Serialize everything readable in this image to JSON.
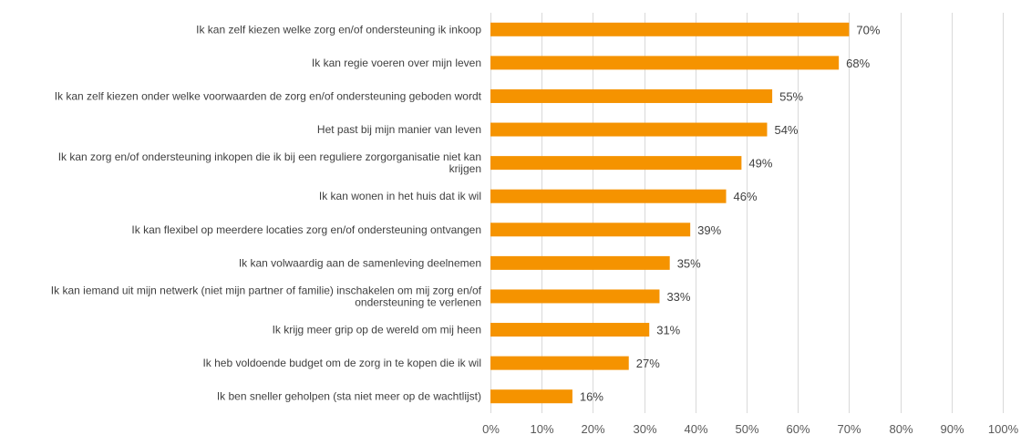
{
  "chart_data": {
    "type": "bar",
    "orientation": "horizontal",
    "categories": [
      "Ik kan zelf kiezen welke zorg en/of ondersteuning ik inkoop",
      "Ik kan regie voeren over mijn leven",
      "Ik kan zelf kiezen onder welke voorwaarden de zorg en/of ondersteuning geboden wordt",
      "Het past bij mijn manier van leven",
      "Ik kan zorg en/of ondersteuning inkopen die ik bij een reguliere zorgorganisatie niet kan krijgen",
      "Ik kan wonen in het huis dat ik wil",
      "Ik kan flexibel op meerdere locaties zorg en/of ondersteuning ontvangen",
      "Ik kan volwaardig aan de samenleving deelnemen",
      "Ik kan iemand uit mijn netwerk (niet mijn partner of familie) inschakelen om mij zorg en/of ondersteuning te verlenen",
      "Ik krijg meer grip op de wereld om mij heen",
      "Ik heb voldoende budget om de zorg in te kopen die ik wil",
      "Ik ben sneller geholpen (sta niet meer op de wachtlijst)"
    ],
    "category_lines": [
      [
        "Ik kan zelf kiezen welke zorg en/of ondersteuning ik inkoop"
      ],
      [
        "Ik kan regie voeren over mijn leven"
      ],
      [
        "Ik kan zelf kiezen onder welke voorwaarden de zorg en/of ondersteuning geboden wordt"
      ],
      [
        "Het past bij mijn manier van leven"
      ],
      [
        "Ik kan zorg en/of ondersteuning inkopen die ik bij een reguliere zorgorganisatie niet kan",
        "krijgen"
      ],
      [
        "Ik kan wonen in het huis dat ik wil"
      ],
      [
        "Ik kan flexibel op meerdere locaties zorg en/of ondersteuning ontvangen"
      ],
      [
        "Ik kan volwaardig aan de samenleving deelnemen"
      ],
      [
        "Ik kan iemand uit mijn netwerk (niet mijn partner of familie) inschakelen om mij zorg en/of",
        "ondersteuning te verlenen"
      ],
      [
        "Ik krijg meer grip op de wereld om mij heen"
      ],
      [
        "Ik heb voldoende budget om de zorg in te kopen die ik wil"
      ],
      [
        "Ik ben sneller geholpen (sta niet meer op de wachtlijst)"
      ]
    ],
    "values": [
      70,
      68,
      55,
      54,
      49,
      46,
      39,
      35,
      33,
      31,
      27,
      16
    ],
    "value_labels": [
      "70%",
      "68%",
      "55%",
      "54%",
      "49%",
      "46%",
      "39%",
      "35%",
      "33%",
      "31%",
      "27%",
      "16%"
    ],
    "xlim": [
      0,
      100
    ],
    "xticks": [
      0,
      10,
      20,
      30,
      40,
      50,
      60,
      70,
      80,
      90,
      100
    ],
    "xtick_labels": [
      "0%",
      "10%",
      "20%",
      "30%",
      "40%",
      "50%",
      "60%",
      "70%",
      "80%",
      "90%",
      "100%"
    ],
    "bar_color": "#f59300",
    "grid": true,
    "legend": "none"
  }
}
